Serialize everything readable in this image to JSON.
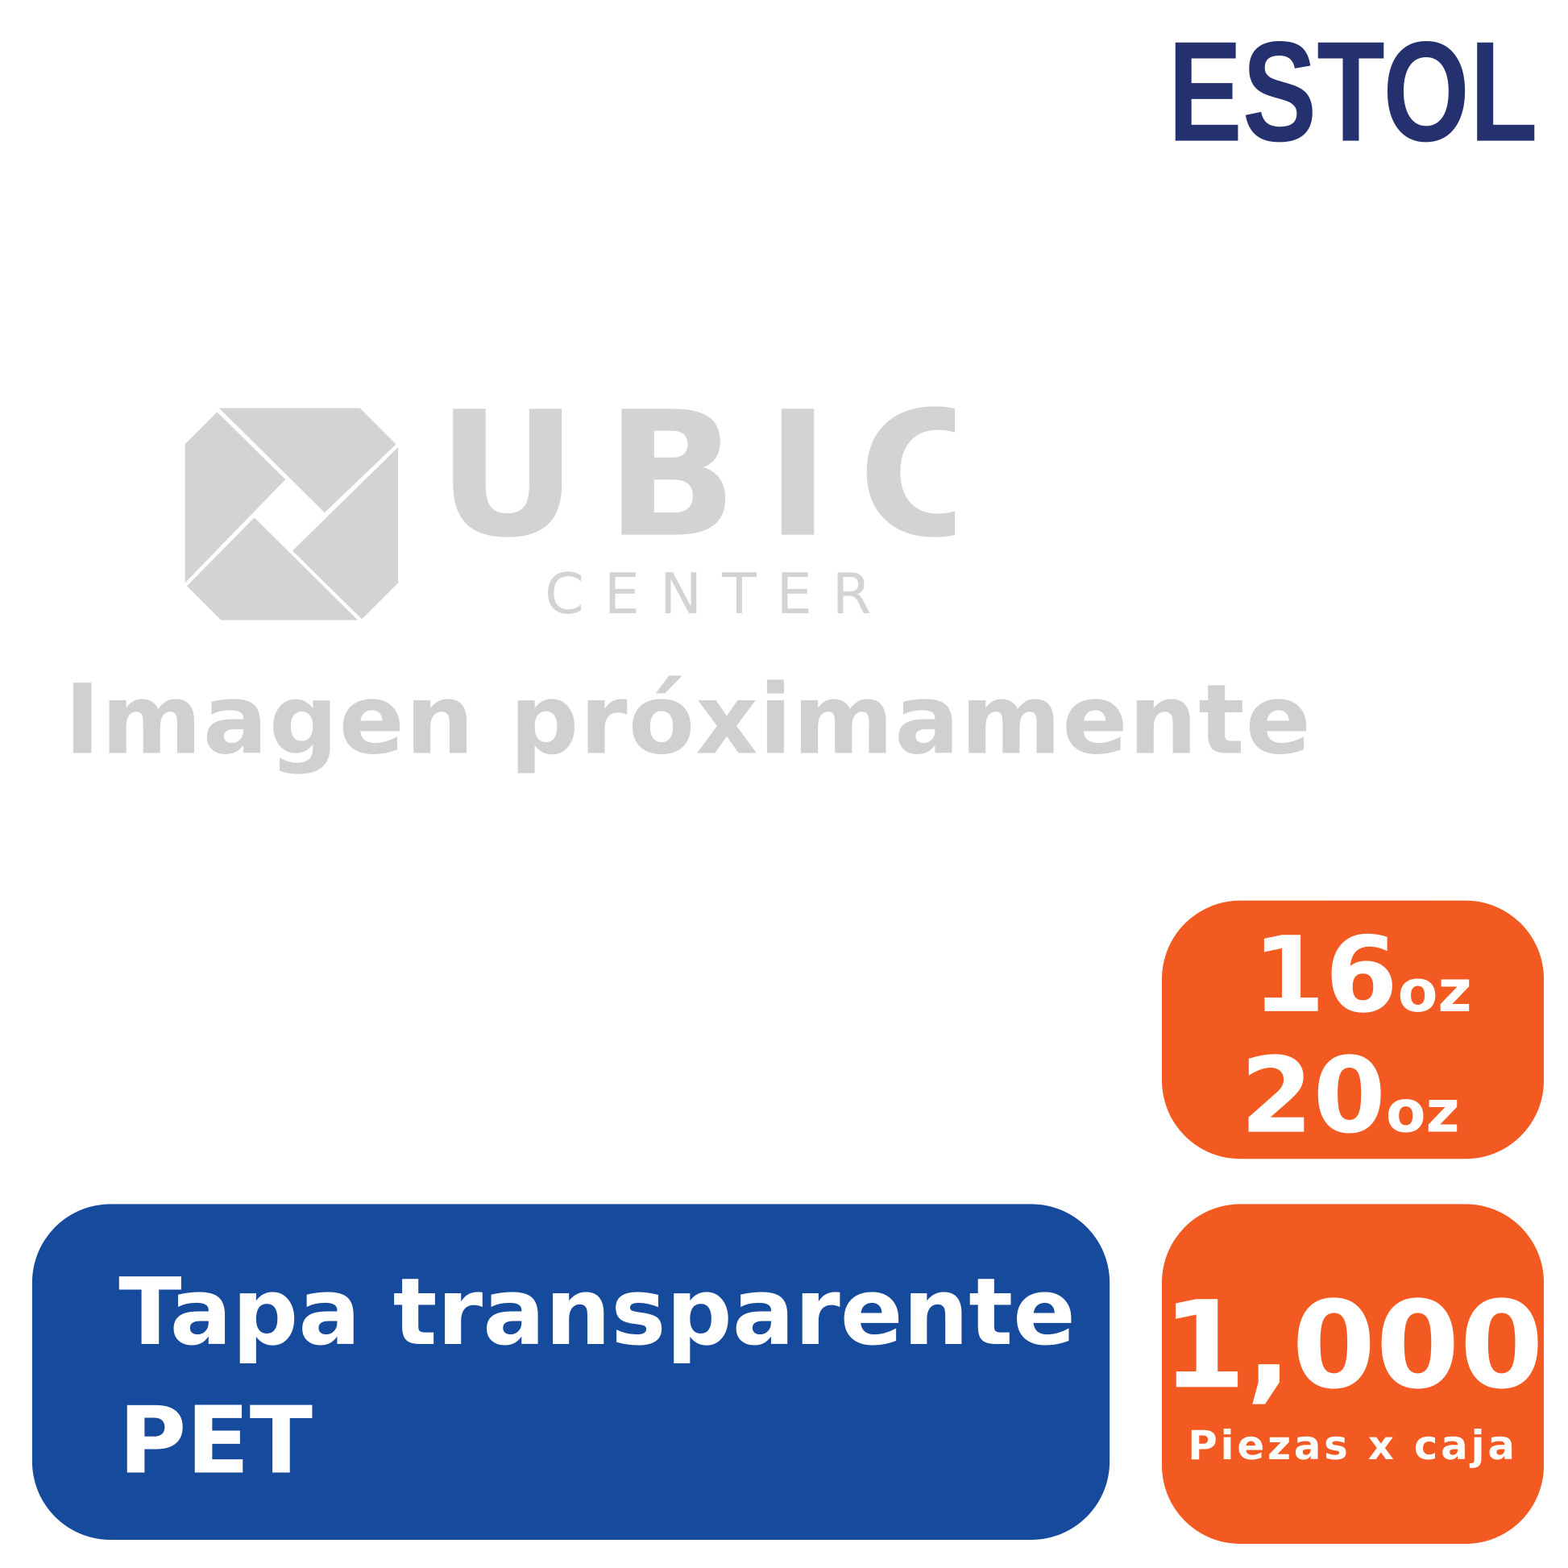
{
  "brand": {
    "logo_text": "ESTOL",
    "color": "#25316e"
  },
  "placeholder": {
    "logo_text": "UBIC",
    "logo_subtext": "CENTER",
    "message": "Imagen próximamente",
    "color": "#d0d0d0"
  },
  "sizes": {
    "items": [
      {
        "value": "16",
        "unit": "oz"
      },
      {
        "value": "20",
        "unit": "oz"
      }
    ],
    "color": "#f25a22"
  },
  "product": {
    "line1": "Tapa transparente",
    "line2": "PET",
    "color": "#164a9c"
  },
  "quantity": {
    "value": "1,000",
    "label": "Piezas x caja"
  }
}
